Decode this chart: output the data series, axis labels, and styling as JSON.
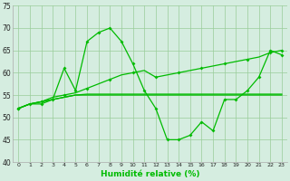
{
  "x": [
    0,
    1,
    2,
    3,
    4,
    5,
    6,
    7,
    8,
    9,
    10,
    11,
    12,
    13,
    14,
    15,
    16,
    17,
    18,
    19,
    20,
    21,
    22,
    23
  ],
  "line1": [
    52,
    53,
    53,
    54,
    61,
    56,
    67,
    69,
    70,
    67,
    62,
    56,
    52,
    45,
    45,
    46,
    49,
    47,
    54,
    54,
    56,
    59,
    65,
    64
  ],
  "line2": [
    52,
    53,
    53.5,
    54.5,
    55,
    55.5,
    56.5,
    57.5,
    58.5,
    59.5,
    60,
    60.5,
    59,
    59.5,
    60,
    60.5,
    61,
    61.5,
    62,
    62.5,
    63,
    63.5,
    64.5,
    65
  ],
  "line2_markers_x": [
    0,
    2,
    4,
    6,
    8,
    10,
    12,
    14,
    16,
    18,
    20,
    22,
    23
  ],
  "line2_markers_y": [
    52,
    53.5,
    55,
    56.5,
    58.5,
    60,
    59,
    60,
    61,
    62,
    63,
    64.5,
    65
  ],
  "line3": [
    52,
    53,
    53.5,
    54,
    54.5,
    55,
    55,
    55,
    55,
    55,
    55,
    55,
    55,
    55,
    55,
    55,
    55,
    55,
    55,
    55,
    55,
    55,
    55,
    55
  ],
  "line4": [
    52,
    53,
    53.5,
    54,
    54.5,
    55,
    55.2,
    55.2,
    55.2,
    55.2,
    55.2,
    55.2,
    55.2,
    55.2,
    55.2,
    55.2,
    55.2,
    55.2,
    55.2,
    55.2,
    55.2,
    55.2,
    55.2,
    55.2
  ],
  "line_color": "#00bb00",
  "bg_color": "#d5ede0",
  "grid_color": "#99cc99",
  "xlabel": "Humidité relative (%)",
  "ylim": [
    40,
    75
  ],
  "xlim": [
    -0.5,
    23.5
  ],
  "yticks": [
    40,
    45,
    50,
    55,
    60,
    65,
    70,
    75
  ],
  "xticks": [
    0,
    1,
    2,
    3,
    4,
    5,
    6,
    7,
    8,
    9,
    10,
    11,
    12,
    13,
    14,
    15,
    16,
    17,
    18,
    19,
    20,
    21,
    22,
    23
  ]
}
